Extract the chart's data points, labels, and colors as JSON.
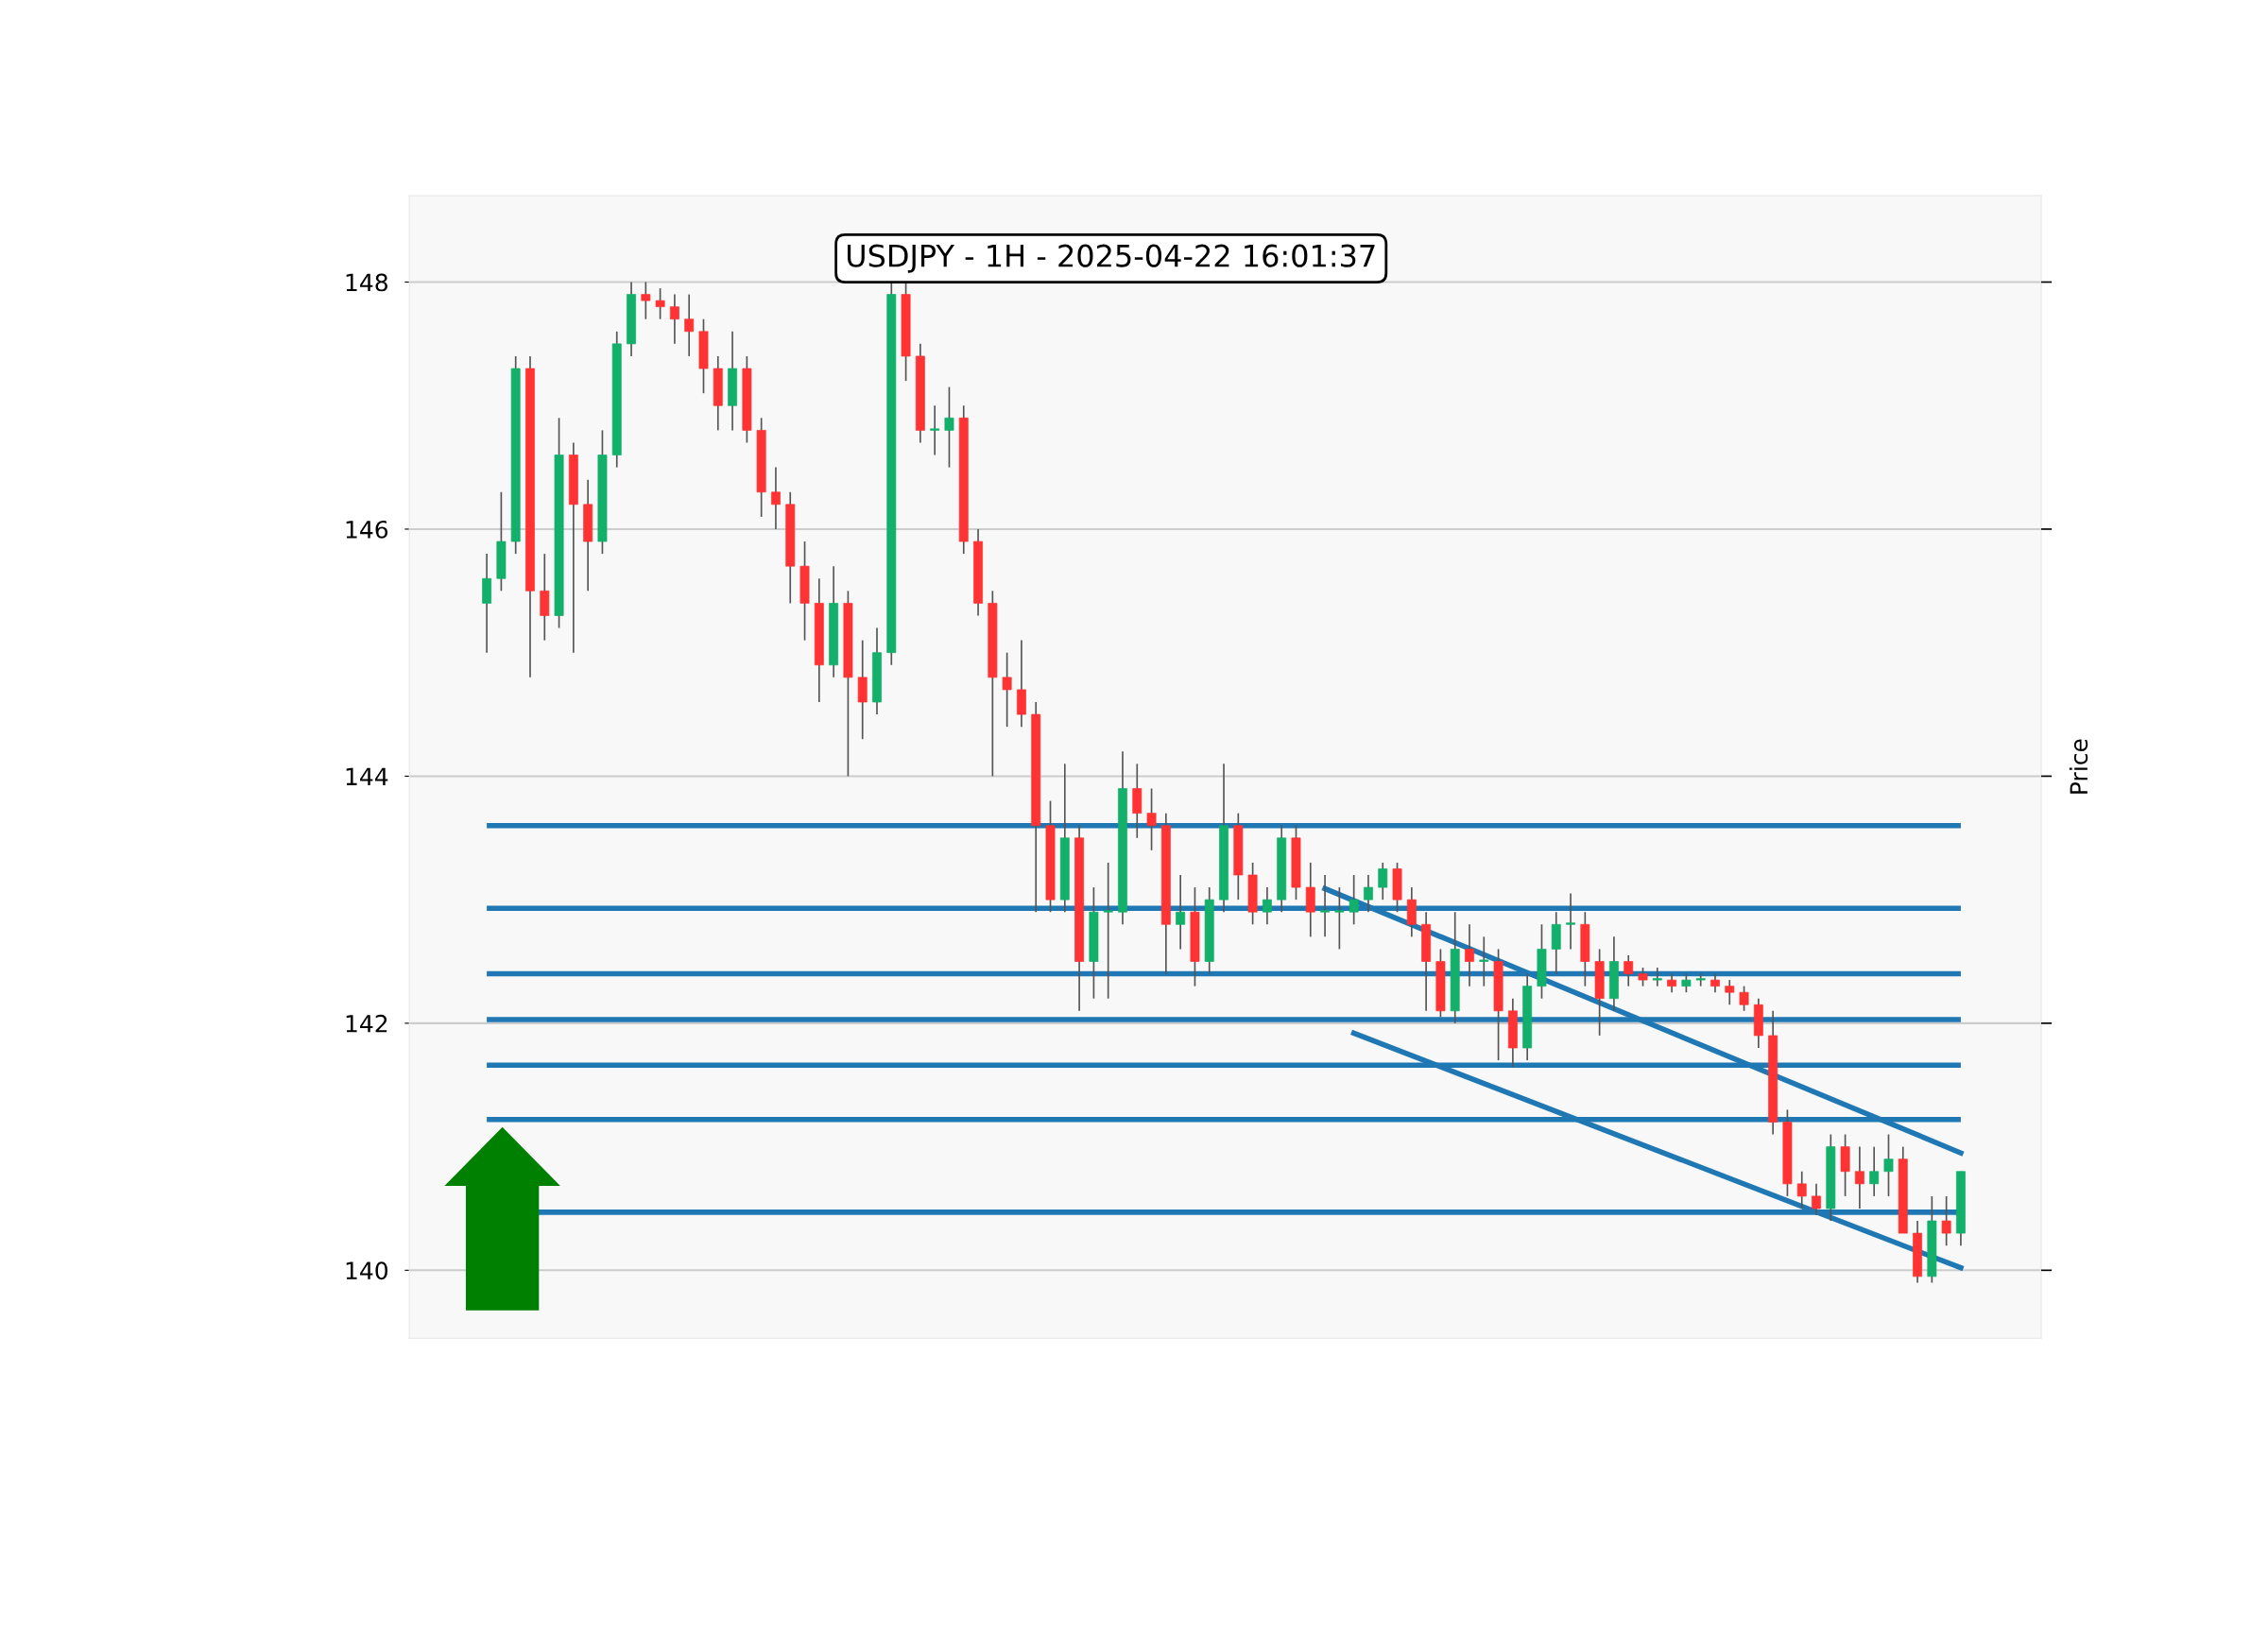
{
  "chart_data": {
    "type": "candlestick",
    "title": "USDJPY - 1H - 2025-04-22 16:01:37",
    "y2label": "Price",
    "categories": [
      null,
      null,
      null,
      null,
      null,
      null,
      null,
      null,
      null,
      null,
      null,
      null,
      null,
      null,
      null,
      null,
      null,
      null,
      null,
      null,
      null,
      null,
      null,
      null,
      null,
      null,
      null,
      null,
      null,
      null,
      null,
      null,
      null,
      null,
      null,
      null,
      null,
      null,
      null,
      null,
      null,
      null,
      null,
      null,
      null,
      null,
      null,
      null,
      null,
      null,
      null,
      null,
      null,
      null,
      null,
      null,
      null,
      null,
      null,
      null,
      null,
      null,
      null,
      null,
      null,
      null,
      null,
      null,
      null,
      null,
      null,
      null,
      null,
      null,
      null,
      null,
      null,
      null,
      null,
      null,
      null,
      null,
      null,
      null,
      null,
      null,
      null,
      null,
      null,
      null,
      null,
      null,
      null,
      null,
      null,
      null,
      null,
      null,
      null,
      null,
      null,
      null,
      null
    ],
    "ylim": [
      139.45,
      148.7
    ],
    "yticks": [
      140,
      142,
      144,
      146,
      148
    ],
    "grid": "y",
    "legend": false,
    "series": [
      {
        "type": "candlestick",
        "colors": [
          "#12b06a",
          "#12b06a",
          "#12b06a",
          "#ff3333",
          "#ff3333",
          "#12b06a",
          "#ff3333",
          "#ff3333",
          "#12b06a",
          "#12b06a",
          "#12b06a",
          "#ff3333",
          "#ff3333",
          "#ff3333",
          "#ff3333",
          "#ff3333",
          "#ff3333",
          "#12b06a",
          "#ff3333",
          "#ff3333",
          "#ff3333",
          "#ff3333",
          "#ff3333",
          "#ff3333",
          "#12b06a",
          "#ff3333",
          "#ff3333",
          "#12b06a",
          "#12b06a",
          "#ff3333",
          "#ff3333",
          "#12b06a",
          "#12b06a",
          "#ff3333",
          "#ff3333",
          "#ff3333",
          "#ff3333",
          "#ff3333",
          "#ff3333",
          "#ff3333",
          "#12b06a",
          "#ff3333",
          "#12b06a",
          "#12b06a",
          "#12b06a",
          "#ff3333",
          "#ff3333",
          "#ff3333",
          "#12b06a",
          "#ff3333",
          "#12b06a",
          "#12b06a",
          "#ff3333",
          "#ff3333",
          "#12b06a",
          "#12b06a",
          "#ff3333",
          "#ff3333",
          "#12b06a",
          "#12b06a",
          "#12b06a",
          "#12b06a",
          "#12b06a",
          "#ff3333",
          "#ff3333",
          "#ff3333",
          "#ff3333",
          "#12b06a",
          "#ff3333",
          "#12b06a",
          "#ff3333",
          "#ff3333",
          "#12b06a",
          "#12b06a",
          "#12b06a",
          "#12b06a",
          "#ff3333",
          "#ff3333",
          "#12b06a",
          "#ff3333",
          "#ff3333",
          "#12b06a",
          "#ff3333",
          "#12b06a",
          "#12b06a",
          "#ff3333",
          "#ff3333",
          "#ff3333",
          "#ff3333",
          "#ff3333",
          "#ff3333",
          "#ff3333",
          "#ff3333",
          "#12b06a",
          "#ff3333",
          "#ff3333",
          "#12b06a",
          "#12b06a",
          "#ff3333",
          "#ff3333",
          "#12b06a",
          "#ff3333",
          "#12b06a"
        ],
        "ohlc": [
          [
            145.4,
            145.8,
            145.0,
            145.6
          ],
          [
            145.6,
            146.3,
            145.5,
            145.9
          ],
          [
            145.9,
            147.4,
            145.8,
            147.3
          ],
          [
            147.3,
            147.4,
            144.8,
            145.5
          ],
          [
            145.5,
            145.8,
            145.1,
            145.3
          ],
          [
            145.3,
            146.9,
            145.2,
            146.6
          ],
          [
            146.6,
            146.7,
            145.0,
            146.2
          ],
          [
            146.2,
            146.4,
            145.5,
            145.9
          ],
          [
            145.9,
            146.8,
            145.8,
            146.6
          ],
          [
            146.6,
            147.6,
            146.5,
            147.5
          ],
          [
            147.5,
            148.0,
            147.4,
            147.9
          ],
          [
            147.9,
            148.0,
            147.7,
            147.85
          ],
          [
            147.85,
            147.95,
            147.7,
            147.8
          ],
          [
            147.8,
            147.9,
            147.5,
            147.7
          ],
          [
            147.7,
            147.9,
            147.4,
            147.6
          ],
          [
            147.6,
            147.7,
            147.1,
            147.3
          ],
          [
            147.3,
            147.4,
            146.8,
            147.0
          ],
          [
            147.0,
            147.6,
            146.8,
            147.3
          ],
          [
            147.3,
            147.4,
            146.7,
            146.8
          ],
          [
            146.8,
            146.9,
            146.1,
            146.3
          ],
          [
            146.3,
            146.5,
            146.0,
            146.2
          ],
          [
            146.2,
            146.3,
            145.4,
            145.7
          ],
          [
            145.7,
            145.9,
            145.1,
            145.4
          ],
          [
            145.4,
            145.6,
            144.6,
            144.9
          ],
          [
            144.9,
            145.7,
            144.8,
            145.4
          ],
          [
            145.4,
            145.5,
            144.0,
            144.8
          ],
          [
            144.8,
            145.1,
            144.3,
            144.6
          ],
          [
            144.6,
            145.2,
            144.5,
            145.0
          ],
          [
            145.0,
            148.0,
            144.9,
            147.9
          ],
          [
            147.9,
            148.0,
            147.2,
            147.4
          ],
          [
            147.4,
            147.5,
            146.7,
            146.8
          ],
          [
            146.8,
            147.0,
            146.6,
            146.8
          ],
          [
            146.8,
            147.15,
            146.5,
            146.9
          ],
          [
            146.9,
            147.0,
            145.8,
            145.9
          ],
          [
            145.9,
            146.0,
            145.3,
            145.4
          ],
          [
            145.4,
            145.5,
            144.0,
            144.8
          ],
          [
            144.8,
            145.0,
            144.4,
            144.7
          ],
          [
            144.7,
            145.1,
            144.4,
            144.5
          ],
          [
            144.5,
            144.6,
            142.9,
            143.6
          ],
          [
            143.6,
            143.8,
            142.9,
            143.0
          ],
          [
            143.0,
            144.1,
            142.9,
            143.5
          ],
          [
            143.5,
            143.6,
            142.1,
            142.5
          ],
          [
            142.5,
            143.1,
            142.2,
            142.9
          ],
          [
            142.9,
            143.3,
            142.2,
            142.9
          ],
          [
            142.9,
            144.2,
            142.8,
            143.9
          ],
          [
            143.9,
            144.1,
            143.5,
            143.7
          ],
          [
            143.7,
            143.9,
            143.4,
            143.6
          ],
          [
            143.6,
            143.7,
            142.4,
            142.8
          ],
          [
            142.8,
            143.2,
            142.6,
            142.9
          ],
          [
            142.9,
            143.1,
            142.3,
            142.5
          ],
          [
            142.5,
            143.1,
            142.4,
            143.0
          ],
          [
            143.0,
            144.1,
            142.9,
            143.6
          ],
          [
            143.6,
            143.7,
            143.0,
            143.2
          ],
          [
            143.2,
            143.3,
            142.8,
            142.9
          ],
          [
            142.9,
            143.1,
            142.8,
            143.0
          ],
          [
            143.0,
            143.6,
            142.9,
            143.5
          ],
          [
            143.5,
            143.6,
            143.0,
            143.1
          ],
          [
            143.1,
            143.3,
            142.7,
            142.9
          ],
          [
            142.9,
            143.2,
            142.7,
            142.9
          ],
          [
            142.9,
            143.1,
            142.6,
            142.9
          ],
          [
            142.9,
            143.2,
            142.8,
            143.0
          ],
          [
            143.0,
            143.2,
            142.9,
            143.1
          ],
          [
            143.1,
            143.3,
            143.0,
            143.25
          ],
          [
            143.25,
            143.3,
            142.9,
            143.0
          ],
          [
            143.0,
            143.1,
            142.7,
            142.8
          ],
          [
            142.8,
            142.9,
            142.1,
            142.5
          ],
          [
            142.5,
            142.6,
            142.05,
            142.1
          ],
          [
            142.1,
            142.9,
            142.0,
            142.6
          ],
          [
            142.6,
            142.8,
            142.3,
            142.5
          ],
          [
            142.5,
            142.7,
            142.3,
            142.5
          ],
          [
            142.5,
            142.6,
            141.7,
            142.1
          ],
          [
            142.1,
            142.2,
            141.65,
            141.8
          ],
          [
            141.8,
            142.4,
            141.7,
            142.3
          ],
          [
            142.3,
            142.8,
            142.2,
            142.6
          ],
          [
            142.6,
            142.9,
            142.4,
            142.8
          ],
          [
            142.8,
            143.05,
            142.6,
            142.8
          ],
          [
            142.8,
            142.9,
            142.3,
            142.5
          ],
          [
            142.5,
            142.6,
            141.9,
            142.2
          ],
          [
            142.2,
            142.7,
            142.1,
            142.5
          ],
          [
            142.5,
            142.55,
            142.3,
            142.4
          ],
          [
            142.4,
            142.45,
            142.3,
            142.35
          ],
          [
            142.35,
            142.45,
            142.3,
            142.35
          ],
          [
            142.35,
            142.4,
            142.25,
            142.3
          ],
          [
            142.3,
            142.4,
            142.25,
            142.35
          ],
          [
            142.35,
            142.4,
            142.3,
            142.35
          ],
          [
            142.35,
            142.4,
            142.25,
            142.3
          ],
          [
            142.3,
            142.35,
            142.15,
            142.25
          ],
          [
            142.25,
            142.3,
            142.1,
            142.15
          ],
          [
            142.15,
            142.2,
            141.8,
            141.9
          ],
          [
            141.9,
            142.1,
            141.1,
            141.2
          ],
          [
            141.2,
            141.3,
            140.6,
            140.7
          ],
          [
            140.7,
            140.8,
            140.5,
            140.6
          ],
          [
            140.6,
            140.7,
            140.45,
            140.5
          ],
          [
            140.5,
            141.1,
            140.4,
            141.0
          ],
          [
            141.0,
            141.1,
            140.6,
            140.8
          ],
          [
            140.8,
            141.0,
            140.5,
            140.7
          ],
          [
            140.7,
            141.0,
            140.6,
            140.8
          ],
          [
            140.8,
            141.1,
            140.6,
            140.9
          ],
          [
            140.9,
            141.0,
            140.3,
            140.3
          ],
          [
            140.3,
            140.4,
            139.9,
            139.95
          ],
          [
            139.95,
            140.6,
            139.9,
            140.4
          ],
          [
            140.4,
            140.6,
            140.2,
            140.3
          ],
          [
            140.3,
            140.8,
            140.2,
            140.8
          ]
        ]
      },
      {
        "type": "line",
        "color": "#1f77b4",
        "values": [
          null,
          null,
          null,
          null,
          null,
          null,
          null,
          null,
          null,
          null,
          null,
          null,
          null,
          null,
          null,
          null,
          null,
          null,
          null,
          null,
          null,
          null,
          null,
          null,
          null,
          null,
          null,
          null,
          null,
          null,
          null,
          null,
          null,
          null,
          null,
          null,
          null,
          null,
          null,
          null,
          null,
          null,
          null,
          null,
          null,
          null,
          null,
          null,
          null,
          null,
          null,
          null,
          null,
          null,
          null,
          null,
          null,
          null,
          143.09,
          null,
          null,
          null,
          null,
          null,
          null,
          null,
          null,
          null,
          null,
          null,
          null,
          null,
          null,
          null,
          null,
          null,
          null,
          null,
          null,
          null,
          null,
          null,
          null,
          null,
          null,
          null,
          null,
          null,
          null,
          null,
          null,
          null,
          null,
          null,
          null,
          null,
          null,
          null,
          null,
          null,
          null,
          null,
          140.95
        ]
      },
      {
        "type": "line",
        "color": "#1f77b4",
        "values": [
          null,
          null,
          null,
          null,
          null,
          null,
          null,
          null,
          null,
          null,
          null,
          null,
          null,
          null,
          null,
          null,
          null,
          null,
          null,
          null,
          null,
          null,
          null,
          null,
          null,
          null,
          null,
          null,
          null,
          null,
          null,
          null,
          null,
          null,
          null,
          null,
          null,
          null,
          null,
          null,
          null,
          null,
          null,
          null,
          null,
          null,
          null,
          null,
          null,
          null,
          null,
          null,
          null,
          null,
          null,
          null,
          null,
          null,
          null,
          null,
          141.92,
          null,
          null,
          null,
          null,
          null,
          null,
          null,
          null,
          null,
          null,
          null,
          null,
          null,
          null,
          null,
          null,
          null,
          null,
          null,
          null,
          null,
          null,
          null,
          null,
          null,
          null,
          null,
          null,
          null,
          null,
          null,
          null,
          null,
          null,
          null,
          null,
          null,
          null,
          null,
          null,
          null,
          140.02
        ]
      }
    ],
    "ref_lines": [
      {
        "axis": "y",
        "value": 143.6,
        "color": "#1f77b4"
      },
      {
        "axis": "y",
        "value": 142.93,
        "color": "#1f77b4"
      },
      {
        "axis": "y",
        "value": 142.4,
        "color": "#1f77b4"
      },
      {
        "axis": "y",
        "value": 142.03,
        "color": "#1f77b4"
      },
      {
        "axis": "y",
        "value": 141.66,
        "color": "#1f77b4"
      },
      {
        "axis": "y",
        "value": 141.22,
        "color": "#1f77b4"
      },
      {
        "axis": "y",
        "value": 140.47,
        "color": "#1f77b4"
      }
    ]
  }
}
